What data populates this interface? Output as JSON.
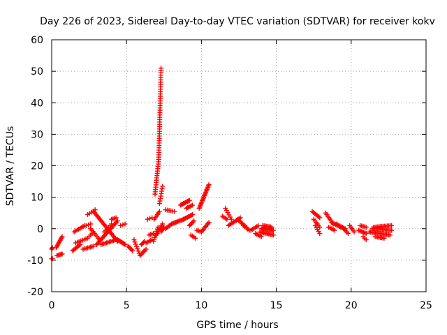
{
  "chart_data": {
    "type": "scatter",
    "title": "Day 226 of 2023, Sidereal Day-to-day VTEC variation (SDTVAR) for receiver kokv",
    "xlabel": "GPS time / hours",
    "ylabel": "SDTVAR / TECUs",
    "xlim": [
      0,
      25
    ],
    "ylim": [
      -20,
      60
    ],
    "xticks": [
      0,
      5,
      10,
      15,
      20,
      25
    ],
    "yticks": [
      -20,
      -10,
      0,
      10,
      20,
      30,
      40,
      50,
      60
    ],
    "grid": true,
    "marker": "+",
    "color": "#ff0000",
    "segments": [
      {
        "x0": 0.0,
        "x1": 0.05,
        "y0": -6.5,
        "y1": -6.0,
        "n": 3
      },
      {
        "x0": 0.0,
        "x1": 0.05,
        "y0": -9.5,
        "y1": -9.5,
        "n": 2
      },
      {
        "x0": 0.35,
        "x1": 0.7,
        "y0": -8.5,
        "y1": -8.0,
        "n": 6
      },
      {
        "x0": 0.3,
        "x1": 0.7,
        "y0": -6.0,
        "y1": -2.5,
        "n": 10
      },
      {
        "x0": 1.4,
        "x1": 1.9,
        "y0": -7.0,
        "y1": -5.0,
        "n": 8
      },
      {
        "x0": 1.5,
        "x1": 2.2,
        "y0": -1.0,
        "y1": 1.0,
        "n": 8
      },
      {
        "x0": 1.6,
        "x1": 2.4,
        "y0": -4.5,
        "y1": -3.0,
        "n": 8
      },
      {
        "x0": 2.1,
        "x1": 2.8,
        "y0": -6.5,
        "y1": -5.5,
        "n": 8
      },
      {
        "x0": 2.3,
        "x1": 2.6,
        "y0": 1.0,
        "y1": 1.5,
        "n": 3
      },
      {
        "x0": 2.4,
        "x1": 2.9,
        "y0": 4.5,
        "y1": 6.0,
        "n": 5
      },
      {
        "x0": 2.5,
        "x1": 2.8,
        "y0": -2.5,
        "y1": -1.0,
        "n": 4
      },
      {
        "x0": 2.6,
        "x1": 3.2,
        "y0": 0.0,
        "y1": -3.5,
        "n": 8
      },
      {
        "x0": 2.8,
        "x1": 4.4,
        "y0": 5.5,
        "y1": -4.0,
        "n": 24
      },
      {
        "x0": 3.0,
        "x1": 4.4,
        "y0": -5.0,
        "y1": 2.5,
        "n": 20
      },
      {
        "x0": 3.3,
        "x1": 4.3,
        "y0": -5.0,
        "y1": -3.5,
        "n": 12
      },
      {
        "x0": 3.5,
        "x1": 4.0,
        "y0": -1.0,
        "y1": 1.5,
        "n": 6
      },
      {
        "x0": 4.4,
        "x1": 4.9,
        "y0": -3.5,
        "y1": -5.0,
        "n": 10
      },
      {
        "x0": 4.0,
        "x1": 4.3,
        "y0": 3.0,
        "y1": 3.5,
        "n": 4
      },
      {
        "x0": 4.6,
        "x1": 4.9,
        "y0": 1.0,
        "y1": 1.5,
        "n": 3
      },
      {
        "x0": 5.1,
        "x1": 5.4,
        "y0": -5.5,
        "y1": -7.0,
        "n": 5
      },
      {
        "x0": 5.5,
        "x1": 5.9,
        "y0": -3.5,
        "y1": -8.5,
        "n": 8
      },
      {
        "x0": 5.9,
        "x1": 6.3,
        "y0": -8.5,
        "y1": -6.5,
        "n": 6
      },
      {
        "x0": 6.0,
        "x1": 6.2,
        "y0": -5.0,
        "y1": -4.0,
        "n": 4
      },
      {
        "x0": 6.3,
        "x1": 6.7,
        "y0": -4.5,
        "y1": -3.5,
        "n": 5
      },
      {
        "x0": 6.4,
        "x1": 6.7,
        "y0": 3.0,
        "y1": 3.5,
        "n": 3
      },
      {
        "x0": 6.5,
        "x1": 6.8,
        "y0": -2.0,
        "y1": -1.5,
        "n": 4
      },
      {
        "x0": 6.8,
        "x1": 7.1,
        "y0": -4.0,
        "y1": 0.5,
        "n": 8
      },
      {
        "x0": 6.85,
        "x1": 7.2,
        "y0": 3.0,
        "y1": 5.5,
        "n": 6
      },
      {
        "x0": 7.0,
        "x1": 7.4,
        "y0": -2.0,
        "y1": 1.5,
        "n": 8
      },
      {
        "x0": 6.9,
        "x1": 7.15,
        "y0": 11.0,
        "y1": 22.0,
        "n": 16
      },
      {
        "x0": 7.15,
        "x1": 7.3,
        "y0": 22.0,
        "y1": 51.0,
        "n": 40
      },
      {
        "x0": 7.2,
        "x1": 7.4,
        "y0": 8.0,
        "y1": 13.5,
        "n": 8
      },
      {
        "x0": 7.3,
        "x1": 7.5,
        "y0": -1.0,
        "y1": 0.5,
        "n": 5
      },
      {
        "x0": 7.6,
        "x1": 8.0,
        "y0": 0.0,
        "y1": 1.5,
        "n": 6
      },
      {
        "x0": 7.6,
        "x1": 8.2,
        "y0": 6.0,
        "y1": 5.5,
        "n": 6
      },
      {
        "x0": 8.0,
        "x1": 8.8,
        "y0": 1.5,
        "y1": 3.0,
        "n": 12
      },
      {
        "x0": 8.6,
        "x1": 9.2,
        "y0": 7.5,
        "y1": 9.0,
        "n": 10
      },
      {
        "x0": 8.8,
        "x1": 9.4,
        "y0": 3.0,
        "y1": 4.5,
        "n": 10
      },
      {
        "x0": 9.0,
        "x1": 9.4,
        "y0": 6.5,
        "y1": 7.5,
        "n": 6
      },
      {
        "x0": 9.2,
        "x1": 9.5,
        "y0": 1.0,
        "y1": 2.5,
        "n": 5
      },
      {
        "x0": 9.3,
        "x1": 9.6,
        "y0": -2.0,
        "y1": -3.0,
        "n": 4
      },
      {
        "x0": 9.7,
        "x1": 10.0,
        "y0": -0.5,
        "y1": -1.0,
        "n": 4
      },
      {
        "x0": 9.85,
        "x1": 10.5,
        "y0": 6.5,
        "y1": 14.0,
        "n": 20
      },
      {
        "x0": 10.0,
        "x1": 10.5,
        "y0": -1.0,
        "y1": 2.0,
        "n": 8
      },
      {
        "x0": 11.4,
        "x1": 11.7,
        "y0": 4.0,
        "y1": 3.0,
        "n": 4
      },
      {
        "x0": 11.6,
        "x1": 12.0,
        "y0": 6.5,
        "y1": 3.0,
        "n": 6
      },
      {
        "x0": 11.8,
        "x1": 12.6,
        "y0": 1.0,
        "y1": 3.5,
        "n": 10
      },
      {
        "x0": 12.4,
        "x1": 13.0,
        "y0": 3.0,
        "y1": 0.5,
        "n": 8
      },
      {
        "x0": 12.8,
        "x1": 13.2,
        "y0": 1.0,
        "y1": -0.5,
        "n": 5
      },
      {
        "x0": 13.3,
        "x1": 13.8,
        "y0": -0.5,
        "y1": 1.0,
        "n": 6
      },
      {
        "x0": 13.6,
        "x1": 14.0,
        "y0": -1.5,
        "y1": -2.5,
        "n": 5
      },
      {
        "x0": 13.9,
        "x1": 14.8,
        "y0": -1.0,
        "y1": -2.0,
        "n": 12
      },
      {
        "x0": 14.0,
        "x1": 14.8,
        "y0": 0.0,
        "y1": -0.5,
        "n": 12
      },
      {
        "x0": 14.1,
        "x1": 14.7,
        "y0": 1.0,
        "y1": 0.5,
        "n": 8
      },
      {
        "x0": 17.4,
        "x1": 17.9,
        "y0": 5.5,
        "y1": 3.5,
        "n": 7
      },
      {
        "x0": 17.5,
        "x1": 17.9,
        "y0": 3.0,
        "y1": 0.5,
        "n": 6
      },
      {
        "x0": 17.6,
        "x1": 17.9,
        "y0": 1.0,
        "y1": -1.5,
        "n": 5
      },
      {
        "x0": 18.3,
        "x1": 18.8,
        "y0": 5.0,
        "y1": 1.5,
        "n": 8
      },
      {
        "x0": 18.5,
        "x1": 18.9,
        "y0": 0.5,
        "y1": -0.5,
        "n": 5
      },
      {
        "x0": 18.7,
        "x1": 19.3,
        "y0": 2.0,
        "y1": 0.5,
        "n": 8
      },
      {
        "x0": 19.0,
        "x1": 19.6,
        "y0": 1.5,
        "y1": 0.0,
        "n": 8
      },
      {
        "x0": 19.4,
        "x1": 19.8,
        "y0": 0.5,
        "y1": -1.5,
        "n": 6
      },
      {
        "x0": 19.9,
        "x1": 20.2,
        "y0": 1.0,
        "y1": -1.0,
        "n": 5
      },
      {
        "x0": 20.5,
        "x1": 21.0,
        "y0": -0.5,
        "y1": -1.5,
        "n": 7
      },
      {
        "x0": 20.6,
        "x1": 21.0,
        "y0": 1.0,
        "y1": 0.5,
        "n": 5
      },
      {
        "x0": 20.8,
        "x1": 21.0,
        "y0": -2.5,
        "y1": -3.5,
        "n": 3
      },
      {
        "x0": 21.2,
        "x1": 22.6,
        "y0": -1.0,
        "y1": -2.0,
        "n": 18
      },
      {
        "x0": 21.4,
        "x1": 22.7,
        "y0": 0.0,
        "y1": -0.5,
        "n": 16
      },
      {
        "x0": 21.5,
        "x1": 22.7,
        "y0": 0.5,
        "y1": 1.0,
        "n": 14
      },
      {
        "x0": 21.6,
        "x1": 22.2,
        "y0": -2.5,
        "y1": -3.0,
        "n": 8
      }
    ]
  }
}
